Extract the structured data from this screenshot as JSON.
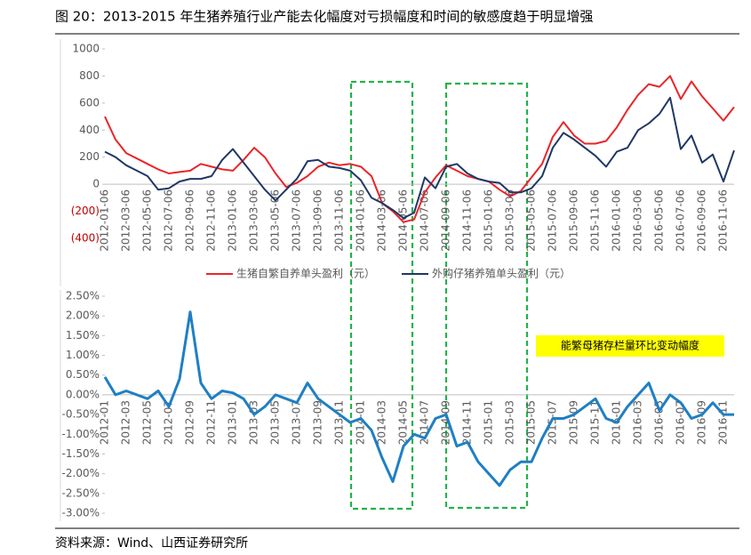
{
  "title": "图 20：2013-2015 年生猪养殖行业产能去化幅度对亏损幅度和时间的敏感度趋于明显增强",
  "source": "资料来源：Wind、山西证券研究所",
  "chart_data": [
    {
      "type": "line",
      "categories": [
        "2012-01-06",
        null,
        "2012-03-06",
        null,
        "2012-05-06",
        null,
        "2012-07-06",
        null,
        "2012-09-06",
        null,
        "2012-11-06",
        null,
        "2013-01-06",
        null,
        "2013-03-06",
        null,
        "2013-05-06",
        null,
        "2013-07-06",
        null,
        "2013-09-06",
        null,
        "2013-11-06",
        null,
        "2014-01-06",
        null,
        "2014-03-06",
        null,
        "2014-05-06",
        null,
        "2014-07-06",
        null,
        "2014-09-06",
        null,
        "2014-11-06",
        null,
        "2015-01-06",
        null,
        "2015-03-06",
        null,
        "2015-05-06",
        null,
        "2015-07-06",
        null,
        "2015-09-06",
        null,
        "2015-11-06",
        null,
        "2016-01-06",
        null,
        "2016-03-06",
        null,
        "2016-05-06",
        null,
        "2016-07-06",
        null,
        "2016-09-06",
        null,
        "2016-11-06",
        null
      ],
      "series": [
        {
          "name": "生猪自繁自养单头盈利（元）",
          "color": "#e8262a",
          "values": [
            500,
            330,
            230,
            190,
            150,
            110,
            80,
            90,
            100,
            150,
            130,
            110,
            100,
            180,
            270,
            200,
            80,
            -20,
            10,
            60,
            130,
            160,
            140,
            150,
            130,
            60,
            -140,
            -200,
            -280,
            -260,
            -60,
            50,
            140,
            100,
            60,
            40,
            20,
            -40,
            -90,
            -50,
            50,
            150,
            350,
            460,
            360,
            300,
            300,
            320,
            420,
            550,
            660,
            740,
            720,
            800,
            630,
            760,
            650,
            560,
            470,
            570
          ]
        },
        {
          "name": "外购仔猪养殖单头盈利（元）",
          "color": "#1f3864",
          "values": [
            240,
            200,
            140,
            100,
            60,
            -40,
            -30,
            20,
            40,
            40,
            60,
            180,
            260,
            160,
            60,
            -40,
            -120,
            -40,
            40,
            170,
            180,
            130,
            120,
            100,
            30,
            -100,
            -140,
            -190,
            -250,
            -210,
            50,
            -30,
            130,
            150,
            80,
            40,
            20,
            10,
            -60,
            -60,
            -30,
            60,
            270,
            380,
            330,
            270,
            210,
            130,
            240,
            270,
            400,
            450,
            520,
            640,
            260,
            360,
            160,
            220,
            20,
            250
          ]
        }
      ],
      "ylim": [
        -400,
        1000
      ],
      "yticks": [
        {
          "value": -400,
          "label": "(400)"
        },
        {
          "value": -200,
          "label": "(200)"
        },
        0,
        200,
        400,
        600,
        800,
        1000
      ]
    },
    {
      "type": "line",
      "categories": [
        "2012-01",
        null,
        "2012-03",
        null,
        "2012-05",
        null,
        "2012-07",
        null,
        "2012-09",
        null,
        "2012-11",
        null,
        "2013-01",
        null,
        "2013-03",
        null,
        "2013-05",
        null,
        "2013-07",
        null,
        "2013-09",
        null,
        "2013-11",
        null,
        "2014-01",
        null,
        "2014-03",
        null,
        "2014-05",
        null,
        "2014-07",
        null,
        "2014-09",
        null,
        "2014-11",
        null,
        "2015-01",
        null,
        "2015-03",
        null,
        "2015-05",
        null,
        "2015-07",
        null,
        "2015-09",
        null,
        "2015-11",
        null,
        "2016-01",
        null,
        "2016-03",
        null,
        "2016-05",
        null,
        "2016-07",
        null,
        "2016-09",
        null,
        "2016-11",
        null
      ],
      "series": [
        {
          "name": "能繁母猪存栏量环比变动幅度",
          "color": "#1f7fc4",
          "values": [
            0.45,
            0.0,
            0.1,
            0.0,
            -0.1,
            0.1,
            -0.3,
            0.4,
            2.1,
            0.3,
            -0.1,
            0.1,
            0.05,
            -0.1,
            -0.5,
            -0.3,
            0.0,
            -0.1,
            -0.2,
            0.3,
            -0.1,
            -0.3,
            -0.5,
            -0.7,
            -0.6,
            -0.9,
            -1.6,
            -2.2,
            -1.3,
            -1.0,
            -1.1,
            -0.6,
            -0.5,
            -1.3,
            -1.2,
            -1.7,
            -2.0,
            -2.3,
            -1.9,
            -1.7,
            -1.7,
            -1.1,
            -0.6,
            -0.6,
            -0.5,
            -0.3,
            -0.1,
            -0.6,
            -0.7,
            -0.3,
            0.0,
            0.3,
            -0.4,
            0.0,
            -0.2,
            -0.6,
            -0.5,
            -0.2,
            -0.5,
            -0.5
          ]
        }
      ],
      "ylim": [
        -3,
        2.5
      ],
      "yticks": [
        {
          "value": -3,
          "label": "-3.00%"
        },
        {
          "value": -2.5,
          "label": "-2.50%"
        },
        {
          "value": -2,
          "label": "-2.00%"
        },
        {
          "value": -1.5,
          "label": "-1.50%"
        },
        {
          "value": -1,
          "label": "-1.00%"
        },
        {
          "value": -0.5,
          "label": "-0.50%"
        },
        {
          "value": 0,
          "label": "0.00%"
        },
        {
          "value": 0.5,
          "label": "0.50%"
        },
        {
          "value": 1,
          "label": "1.00%"
        },
        {
          "value": 1.5,
          "label": "1.50%"
        },
        {
          "value": 2,
          "label": "2.00%"
        },
        {
          "value": 2.5,
          "label": "2.50%"
        }
      ]
    }
  ]
}
